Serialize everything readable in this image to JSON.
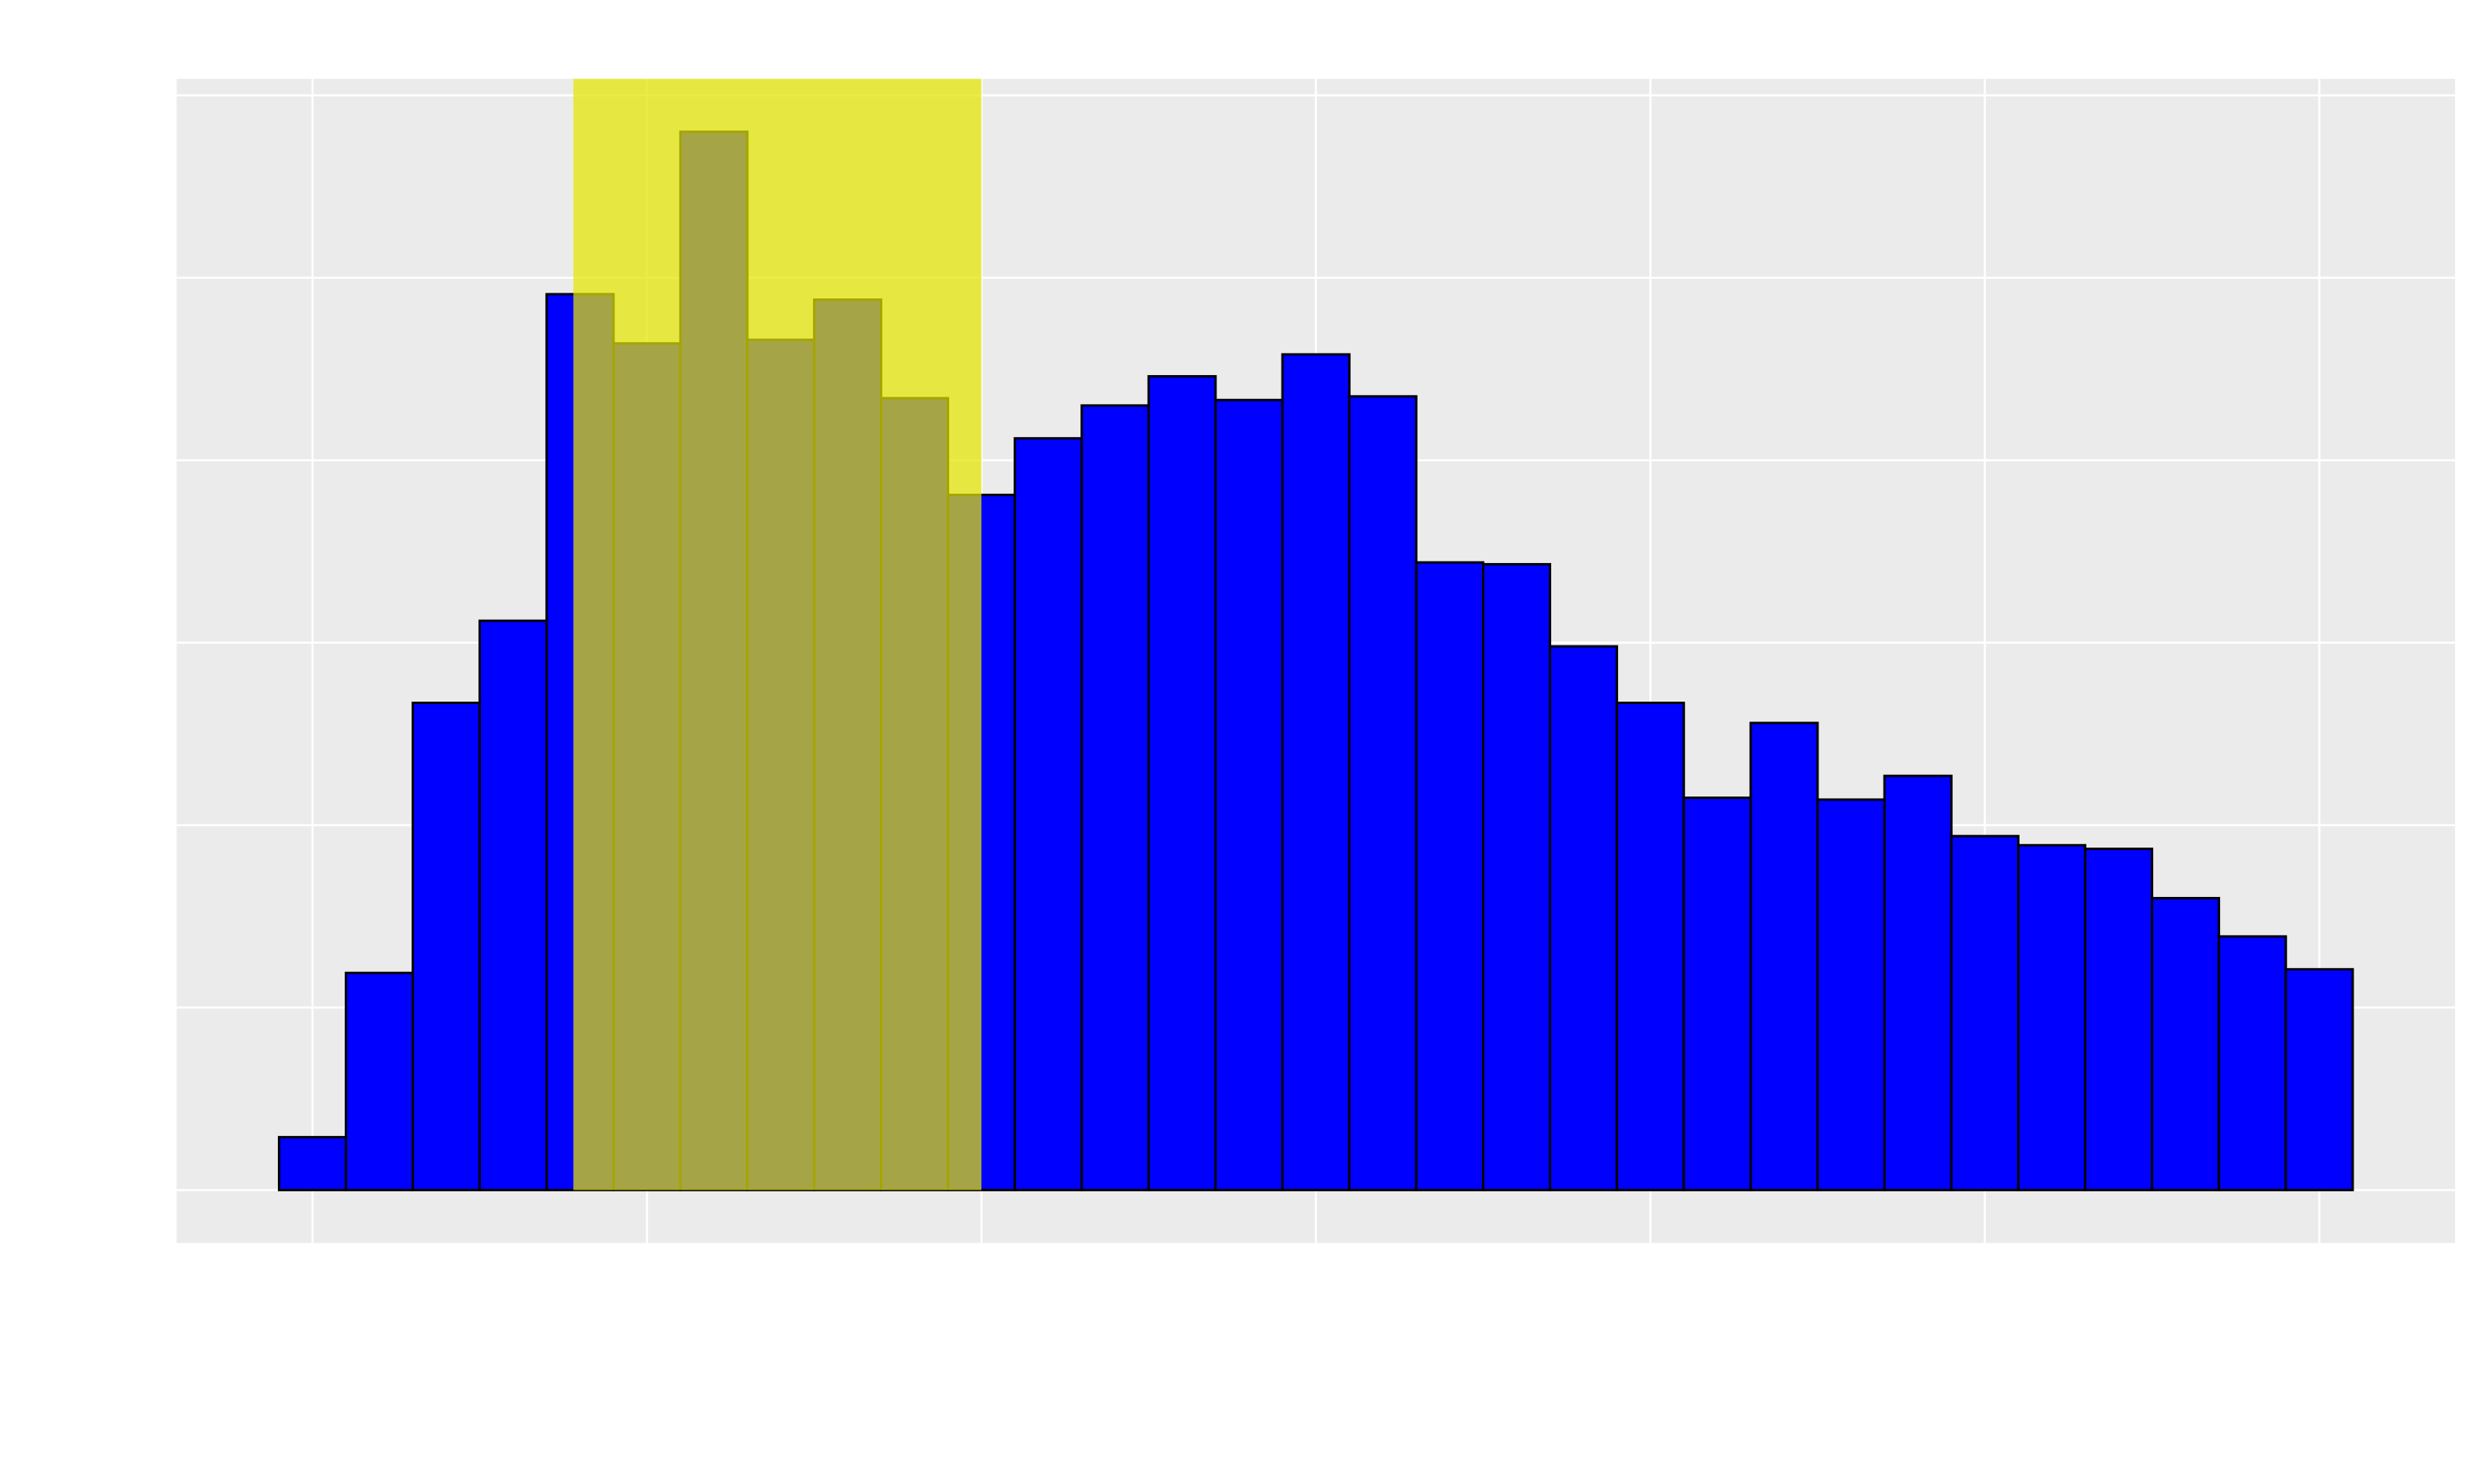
{
  "chart_data": {
    "type": "histogram",
    "bins": [
      -0.1,
      0.1,
      0.3,
      0.5,
      0.7,
      0.9,
      1.1,
      1.3,
      1.5,
      1.7,
      1.9,
      2.1,
      2.3,
      2.5,
      2.7,
      2.9,
      3.1,
      3.3,
      3.5,
      3.7,
      3.9,
      4.1,
      4.3,
      4.5,
      4.7,
      4.9,
      5.1,
      5.3,
      5.5,
      5.7,
      5.9,
      6.1
    ],
    "counts": [
      0.29,
      1.19,
      2.67,
      3.12,
      4.91,
      4.64,
      5.8,
      4.66,
      4.88,
      4.34,
      3.81,
      4.12,
      4.3,
      4.46,
      4.33,
      4.58,
      4.35,
      3.44,
      3.43,
      2.98,
      2.67,
      2.15,
      2.56,
      2.14,
      2.27,
      1.94,
      1.89,
      1.87,
      1.6,
      1.39,
      1.21
    ],
    "color": "#0000ff",
    "edge_color": "#000000",
    "highlight": {
      "xmin": 0.78,
      "xmax": 2,
      "color": "#e5e500",
      "opacity": 0.72
    },
    "xlim": [
      -0.406,
      6.406
    ],
    "ylim": [
      -0.29,
      6.09
    ],
    "xticks": [
      0,
      1,
      2,
      3,
      4,
      5,
      6
    ],
    "yticks": [
      0,
      1,
      2,
      3,
      4,
      5,
      6
    ],
    "grid": true
  }
}
